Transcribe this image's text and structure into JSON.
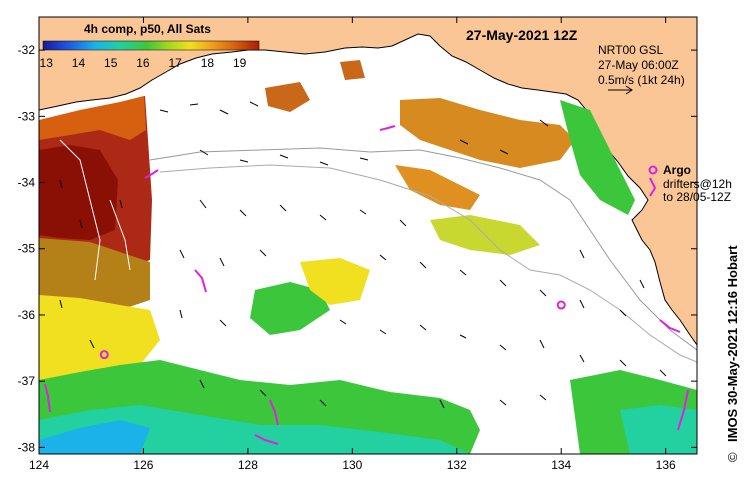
{
  "map": {
    "title": "27-May-2021 12Z",
    "side_label": "IMOS 30-May-2021 12:16 Hobart",
    "copyright_symbol": "©",
    "lon_ticks": [
      "124",
      "126",
      "128",
      "130",
      "132",
      "134",
      "136"
    ],
    "lat_ticks": [
      "-32",
      "-33",
      "-34",
      "-35",
      "-36",
      "-37",
      "-38"
    ],
    "lon_range": [
      124,
      136.6
    ],
    "lat_range": [
      -38.1,
      -31.5
    ],
    "land_color": "#fbc695",
    "ocean_color": "#ffffff"
  },
  "colorbar": {
    "title": "4h comp, p50, All Sats",
    "ticks": [
      "13",
      "14",
      "15",
      "16",
      "17",
      "18",
      "19"
    ],
    "range": [
      12.9,
      19.6
    ],
    "colors": [
      "#1a1a9e",
      "#1c5ae0",
      "#1ab2e8",
      "#22d0a0",
      "#3cc63c",
      "#a2d81e",
      "#f0e020",
      "#f0a020",
      "#d66010",
      "#a81e08"
    ]
  },
  "current_legend": {
    "line1": "NRT00 GSL",
    "line2": "27-May 06:00Z",
    "line3": "0.5m/s (1kt 24h)"
  },
  "argo_legend": {
    "label": "Argo",
    "line1": "drifters@12h",
    "line2": "to 28/05-12Z",
    "marker_color": "#e020e0"
  },
  "argo_floats": [
    {
      "lon": 134.0,
      "lat": -35.85
    },
    {
      "lon": 125.25,
      "lat": -36.6
    }
  ]
}
